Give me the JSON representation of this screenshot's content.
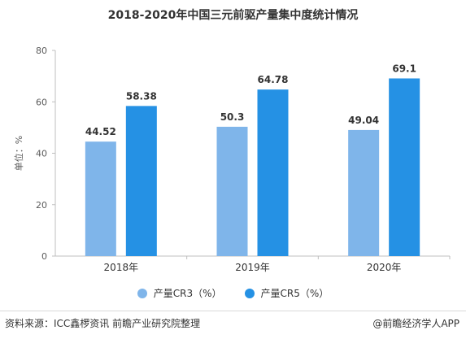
{
  "chart_data": {
    "type": "bar",
    "title": "2018-2020年中国三元前驱产量集中度统计情况",
    "ylabel": "单位：%",
    "xlabel": "",
    "categories": [
      "2018年",
      "2019年",
      "2020年"
    ],
    "ylim": [
      0,
      80
    ],
    "yticks": [
      0,
      20,
      40,
      60,
      80
    ],
    "grid": false,
    "legend_position": "bottom",
    "series": [
      {
        "name": "产量CR3（%）",
        "color": "#7fb5ea",
        "values": [
          44.52,
          50.3,
          49.04
        ],
        "labels": [
          "44.52",
          "50.3",
          "49.04"
        ]
      },
      {
        "name": "产量CR5（%）",
        "color": "#2591e4",
        "values": [
          58.38,
          64.78,
          69.1
        ],
        "labels": [
          "58.38",
          "64.78",
          "69.1"
        ]
      }
    ]
  },
  "footer": {
    "source": "资料来源：ICC鑫椤资讯 前瞻产业研究院整理",
    "brand": "@前瞻经济学人APP"
  }
}
